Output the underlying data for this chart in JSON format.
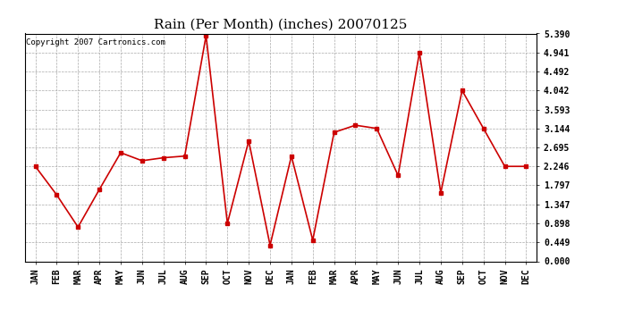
{
  "title": "Rain (Per Month) (inches) 20070125",
  "copyright_text": "Copyright 2007 Cartronics.com",
  "months": [
    "JAN",
    "FEB",
    "MAR",
    "APR",
    "MAY",
    "JUN",
    "JUL",
    "AUG",
    "SEP",
    "OCT",
    "NOV",
    "DEC",
    "JAN",
    "FEB",
    "MAR",
    "APR",
    "MAY",
    "JUN",
    "JUL",
    "AUG",
    "SEP",
    "OCT",
    "NOV",
    "DEC"
  ],
  "values": [
    2.246,
    1.572,
    0.81,
    1.7,
    2.57,
    2.38,
    2.45,
    2.49,
    5.34,
    0.898,
    2.85,
    0.38,
    2.49,
    0.5,
    3.05,
    3.22,
    3.144,
    2.03,
    4.941,
    1.62,
    4.042,
    3.144,
    2.246,
    2.246
  ],
  "line_color": "#cc0000",
  "marker": "s",
  "marker_size": 2.5,
  "line_width": 1.2,
  "ylim": [
    0.0,
    5.39
  ],
  "yticks": [
    0.0,
    0.449,
    0.898,
    1.347,
    1.797,
    2.246,
    2.695,
    3.144,
    3.593,
    4.042,
    4.492,
    4.941,
    5.39
  ],
  "background_color": "#ffffff",
  "plot_bg_color": "#ffffff",
  "grid_color": "#aaaaaa",
  "title_fontsize": 11,
  "tick_fontsize": 7,
  "copyright_fontsize": 6.5
}
